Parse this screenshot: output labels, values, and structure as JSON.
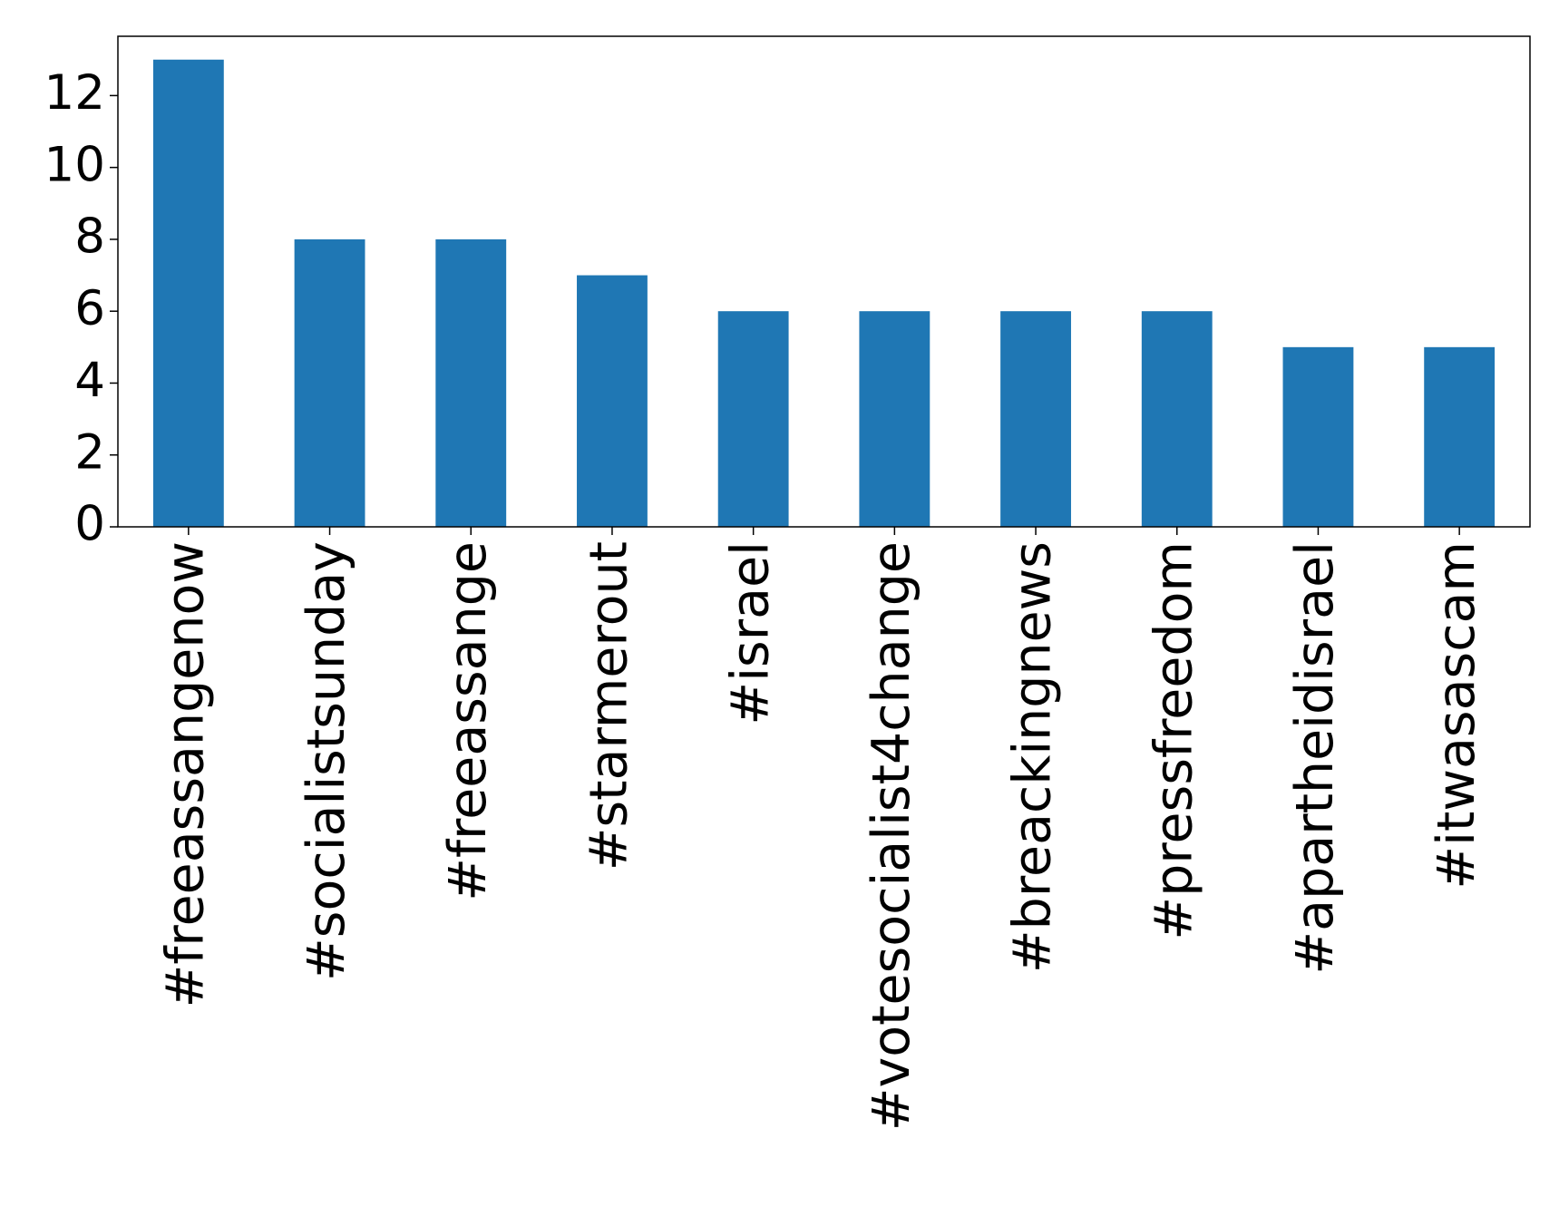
{
  "chart_data": {
    "type": "bar",
    "categories": [
      "#freeassangenow",
      "#socialistsunday",
      "#freeassange",
      "#starmerout",
      "#israel",
      "#votesocialist4change",
      "#breackingnews",
      "#pressfreedom",
      "#apartheidisrael",
      "#itwasascam"
    ],
    "values": [
      13,
      8,
      8,
      7,
      6,
      6,
      6,
      6,
      5,
      5
    ],
    "color": "#1f77b4",
    "ylim": [
      0,
      13.65
    ],
    "yticks": [
      0,
      2,
      4,
      6,
      8,
      10,
      12
    ],
    "grid": false
  }
}
